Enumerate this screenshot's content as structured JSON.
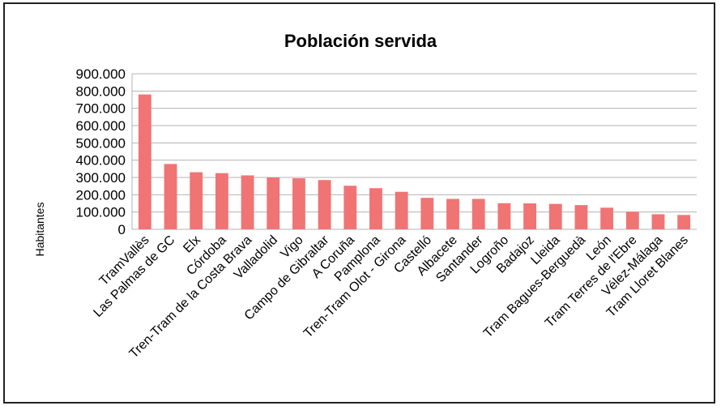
{
  "chart_data": {
    "type": "bar",
    "title": "Población servida",
    "xlabel": "",
    "ylabel": "Habitantes",
    "ylim": [
      0,
      900000
    ],
    "yticks": [
      {
        "value": 0,
        "label": "0"
      },
      {
        "value": 100000,
        "label": "100.000"
      },
      {
        "value": 200000,
        "label": "200.000"
      },
      {
        "value": 300000,
        "label": "300.000"
      },
      {
        "value": 400000,
        "label": "400.000"
      },
      {
        "value": 500000,
        "label": "500.000"
      },
      {
        "value": 600000,
        "label": "600.000"
      },
      {
        "value": 700000,
        "label": "700.000"
      },
      {
        "value": 800000,
        "label": "800.000"
      },
      {
        "value": 900000,
        "label": "900.000"
      }
    ],
    "grid": true,
    "legend": "none",
    "bar_color": "#f07474",
    "categories": [
      "TramVallès",
      "Las Palmas de GC",
      "Elx",
      "Córdoba",
      "Tren-Tram de la Costa Brava",
      "Valladolid",
      "Vigo",
      "Campo de Gibraltar",
      "A Coruña",
      "Pamplona",
      "Tren-Tram Olot - Girona",
      "Castelló",
      "Albacete",
      "Santander",
      "Logroño",
      "Badajoz",
      "Lleida",
      "Tram Bagues-Berguedà",
      "León",
      "Tram Terres de l'Ebre",
      "Vélez-Málaga",
      "Tram Lloret Blanes"
    ],
    "values": [
      780000,
      378000,
      330000,
      325000,
      312000,
      300000,
      295000,
      285000,
      252000,
      238000,
      217000,
      182000,
      176000,
      176000,
      151000,
      150000,
      147000,
      140000,
      125000,
      102000,
      87000,
      83000
    ]
  }
}
